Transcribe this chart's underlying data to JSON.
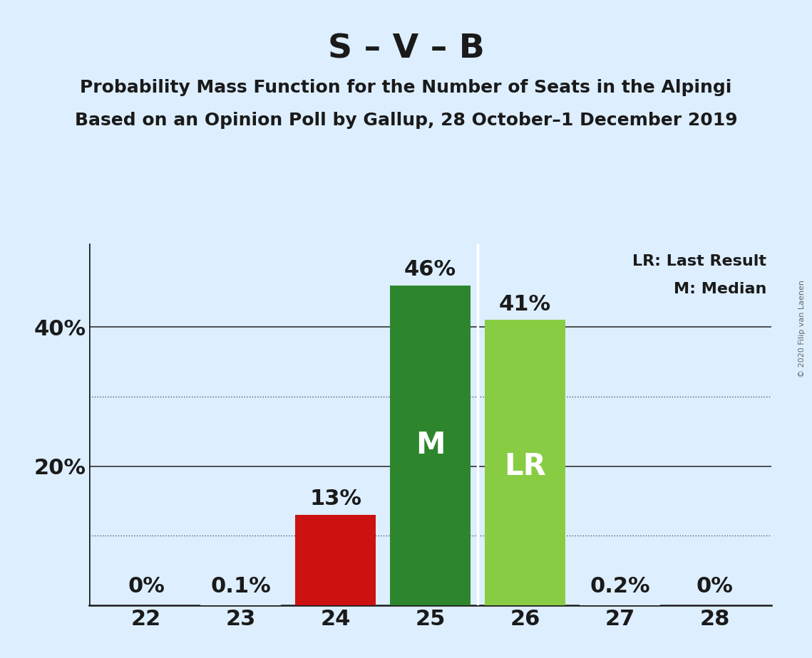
{
  "title": "S – V – B",
  "subtitle1": "Probability Mass Function for the Number of Seats in the Alpingi",
  "subtitle2": "Based on an Opinion Poll by Gallup, 28 October–1 December 2019",
  "copyright": "© 2020 Filip van Laenen",
  "seats": [
    22,
    23,
    24,
    25,
    26,
    27,
    28
  ],
  "probabilities": [
    0.0,
    0.1,
    13.0,
    46.0,
    41.0,
    0.2,
    0.0
  ],
  "bar_colors": [
    "#ddeeff",
    "#ddeeff",
    "#cc1111",
    "#2d862d",
    "#88cc44",
    "#ddeeff",
    "#ddeeff"
  ],
  "median_seat": 25,
  "lr_seat": 26,
  "legend_lr": "LR: Last Result",
  "legend_m": "M: Median",
  "background_color": "#ddeeff",
  "solid_gridlines": [
    20,
    40
  ],
  "dotted_gridlines": [
    10,
    30
  ],
  "ylim": [
    0,
    52
  ],
  "bar_label_fontsize": 22,
  "axis_label_fontsize": 22,
  "title_fontsize": 34,
  "subtitle_fontsize": 18,
  "label_values": {
    "22": "0%",
    "23": "0.1%",
    "24": "13%",
    "25": "46%",
    "26": "41%",
    "27": "0.2%",
    "28": "0%"
  }
}
